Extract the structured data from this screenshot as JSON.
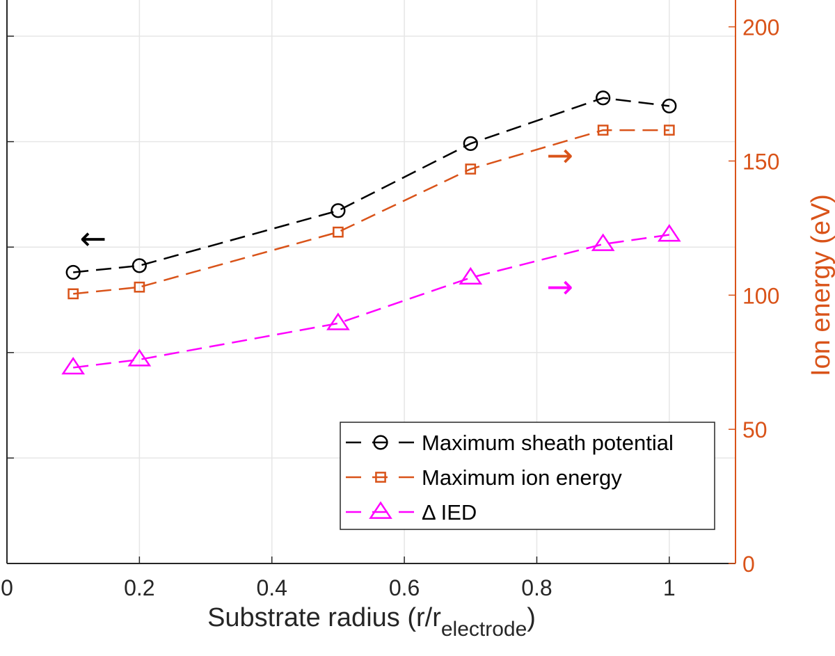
{
  "chart_data": {
    "type": "line",
    "x": [
      0.1,
      0.2,
      0.5,
      0.7,
      0.9,
      1.0
    ],
    "xlabel": "Substrate radius (r/r",
    "xlabel_sub": "electrode",
    "xlabel_close": ")",
    "xlim": [
      0,
      1.1
    ],
    "xticks": [
      0,
      0.2,
      0.4,
      0.6,
      0.8,
      1
    ],
    "xtick_labels": [
      "0",
      "0.2",
      "0.4",
      "0.6",
      "0.8",
      "1"
    ],
    "right_ylabel": "Ion energy (eV)",
    "right_ylim": [
      0,
      210
    ],
    "right_yticks": [
      0,
      50,
      100,
      150,
      200
    ],
    "right_ytick_labels": [
      "0",
      "50",
      "100",
      "150",
      "200"
    ],
    "left_axis_gridlines_fraction": [
      0.2,
      0.4,
      0.6,
      0.8,
      1.0
    ],
    "grid": true,
    "legend_position": "bottom-right",
    "series": [
      {
        "name": "Maximum sheath potential",
        "color": "#000000",
        "marker": "circle",
        "axis": "right-scale",
        "values": [
          108.5,
          111,
          131.5,
          156.5,
          173.5,
          170.5
        ]
      },
      {
        "name": "Maximum ion energy",
        "color": "#d95319",
        "marker": "square",
        "axis": "right",
        "values": [
          100.5,
          103,
          123.5,
          147,
          161.5,
          161.5
        ]
      },
      {
        "name": "Δ IED",
        "color": "#ff00ff",
        "marker": "triangle",
        "axis": "right",
        "values": [
          73,
          76,
          89.5,
          106.5,
          119,
          122.5
        ]
      }
    ],
    "annotations": [
      {
        "glyph": "←",
        "color": "#000000",
        "meaning": "left-axis arrow",
        "x": 0.13,
        "y": 117
      },
      {
        "glyph": "→",
        "color": "#d95319",
        "meaning": "right-axis arrow",
        "x": 0.835,
        "y": 148
      },
      {
        "glyph": "→",
        "color": "#ff00ff",
        "meaning": "right-axis arrow",
        "x": 0.835,
        "y": 99
      }
    ]
  },
  "colors": {
    "axis": "#262626",
    "right_axis": "#d95319",
    "grid": "#e6e6e6"
  }
}
